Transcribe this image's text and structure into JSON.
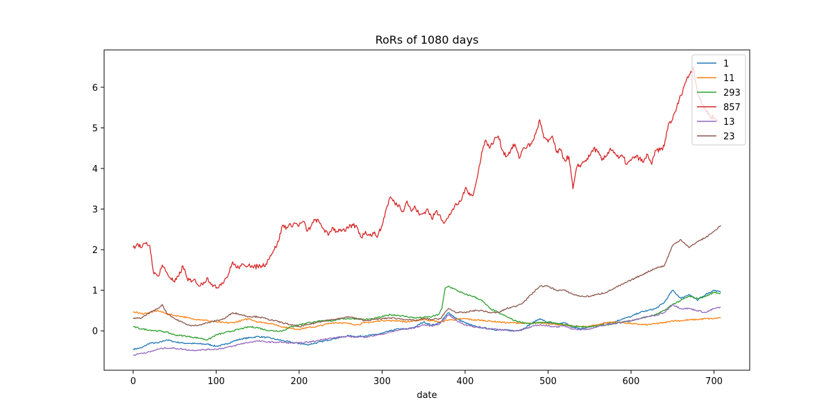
{
  "chart_data": {
    "type": "line",
    "title": "RoRs of 1080 days",
    "xlabel": "date",
    "ylabel": "",
    "xlim": [
      -35,
      743
    ],
    "ylim": [
      -0.97,
      6.92
    ],
    "xticks": [
      0,
      100,
      200,
      300,
      400,
      500,
      600,
      700
    ],
    "yticks": [
      0,
      1,
      2,
      3,
      4,
      5,
      6
    ],
    "grid": false,
    "legend_position": "top-right",
    "series": [
      {
        "name": "1",
        "color": "#1f77b4",
        "x": [
          0,
          10,
          20,
          30,
          40,
          50,
          60,
          70,
          80,
          90,
          100,
          110,
          120,
          130,
          140,
          150,
          160,
          170,
          180,
          190,
          200,
          210,
          220,
          230,
          240,
          250,
          260,
          270,
          280,
          290,
          300,
          310,
          320,
          330,
          340,
          350,
          360,
          370,
          380,
          390,
          400,
          410,
          420,
          430,
          440,
          450,
          460,
          470,
          480,
          490,
          500,
          510,
          520,
          530,
          540,
          550,
          560,
          570,
          580,
          590,
          600,
          610,
          620,
          630,
          640,
          650,
          660,
          670,
          680,
          690,
          700,
          708
        ],
        "values": [
          -0.45,
          -0.42,
          -0.3,
          -0.3,
          -0.22,
          -0.27,
          -0.3,
          -0.31,
          -0.32,
          -0.33,
          -0.38,
          -0.34,
          -0.26,
          -0.2,
          -0.17,
          -0.14,
          -0.16,
          -0.2,
          -0.24,
          -0.28,
          -0.31,
          -0.34,
          -0.3,
          -0.25,
          -0.2,
          -0.16,
          -0.12,
          -0.14,
          -0.12,
          -0.1,
          -0.06,
          0.0,
          0.05,
          0.04,
          0.1,
          0.22,
          0.14,
          0.2,
          0.45,
          0.3,
          0.2,
          0.12,
          0.08,
          0.05,
          0.02,
          0.02,
          0.0,
          0.05,
          0.18,
          0.3,
          0.2,
          0.16,
          0.2,
          0.08,
          0.05,
          0.1,
          0.15,
          0.2,
          0.22,
          0.3,
          0.35,
          0.45,
          0.5,
          0.55,
          0.7,
          1.0,
          0.8,
          0.9,
          0.75,
          0.9,
          1.0,
          0.95
        ]
      },
      {
        "name": "11",
        "color": "#ff7f0e",
        "x": [
          0,
          10,
          20,
          30,
          40,
          50,
          60,
          70,
          80,
          90,
          100,
          110,
          120,
          130,
          140,
          150,
          160,
          170,
          180,
          190,
          200,
          210,
          220,
          230,
          240,
          250,
          260,
          270,
          280,
          290,
          300,
          310,
          320,
          330,
          340,
          350,
          360,
          370,
          380,
          390,
          400,
          410,
          420,
          430,
          440,
          450,
          460,
          470,
          480,
          490,
          500,
          510,
          520,
          530,
          540,
          550,
          560,
          570,
          580,
          590,
          600,
          610,
          620,
          630,
          640,
          650,
          660,
          670,
          680,
          690,
          700,
          708
        ],
        "values": [
          0.48,
          0.42,
          0.45,
          0.5,
          0.42,
          0.38,
          0.35,
          0.3,
          0.28,
          0.25,
          0.22,
          0.2,
          0.2,
          0.25,
          0.3,
          0.22,
          0.2,
          0.16,
          0.1,
          0.06,
          0.04,
          0.08,
          0.1,
          0.15,
          0.2,
          0.2,
          0.18,
          0.15,
          0.2,
          0.22,
          0.26,
          0.25,
          0.25,
          0.22,
          0.25,
          0.28,
          0.25,
          0.22,
          0.27,
          0.28,
          0.3,
          0.27,
          0.26,
          0.24,
          0.22,
          0.2,
          0.2,
          0.19,
          0.18,
          0.2,
          0.18,
          0.16,
          0.14,
          0.12,
          0.1,
          0.12,
          0.15,
          0.2,
          0.22,
          0.2,
          0.18,
          0.16,
          0.15,
          0.18,
          0.2,
          0.25,
          0.25,
          0.27,
          0.28,
          0.3,
          0.3,
          0.33
        ]
      },
      {
        "name": "293",
        "color": "#2ca02c",
        "x": [
          0,
          10,
          20,
          30,
          40,
          50,
          60,
          70,
          80,
          90,
          100,
          110,
          120,
          130,
          140,
          150,
          160,
          170,
          180,
          190,
          200,
          210,
          220,
          230,
          240,
          250,
          260,
          270,
          280,
          290,
          300,
          310,
          320,
          330,
          340,
          350,
          360,
          368,
          372,
          376,
          380,
          390,
          400,
          410,
          420,
          430,
          440,
          450,
          460,
          470,
          480,
          490,
          500,
          510,
          520,
          530,
          540,
          550,
          560,
          570,
          580,
          590,
          600,
          610,
          620,
          630,
          640,
          650,
          660,
          670,
          680,
          690,
          700,
          708
        ],
        "values": [
          0.1,
          0.05,
          0.02,
          0.0,
          -0.03,
          -0.1,
          -0.12,
          -0.15,
          -0.18,
          -0.22,
          -0.1,
          -0.05,
          0.0,
          0.05,
          0.1,
          0.08,
          0.02,
          0.0,
          0.0,
          0.1,
          0.15,
          0.2,
          0.22,
          0.25,
          0.25,
          0.3,
          0.3,
          0.3,
          0.28,
          0.3,
          0.35,
          0.4,
          0.38,
          0.35,
          0.32,
          0.33,
          0.35,
          0.4,
          0.55,
          1.05,
          1.1,
          1.0,
          0.9,
          0.85,
          0.75,
          0.55,
          0.45,
          0.35,
          0.25,
          0.2,
          0.18,
          0.2,
          0.22,
          0.18,
          0.15,
          0.12,
          0.1,
          0.1,
          0.12,
          0.15,
          0.18,
          0.22,
          0.25,
          0.3,
          0.35,
          0.4,
          0.5,
          0.65,
          0.75,
          0.85,
          0.8,
          0.85,
          0.95,
          0.92
        ]
      },
      {
        "name": "857",
        "color": "#d62728",
        "x": [
          0,
          5,
          10,
          15,
          20,
          25,
          30,
          35,
          40,
          45,
          50,
          55,
          60,
          65,
          70,
          75,
          80,
          85,
          90,
          95,
          100,
          105,
          110,
          115,
          120,
          125,
          130,
          135,
          140,
          145,
          150,
          155,
          160,
          165,
          170,
          175,
          180,
          185,
          190,
          195,
          200,
          205,
          210,
          215,
          220,
          225,
          230,
          235,
          240,
          245,
          250,
          255,
          260,
          265,
          270,
          275,
          280,
          285,
          290,
          295,
          300,
          305,
          310,
          315,
          320,
          325,
          330,
          335,
          340,
          345,
          350,
          355,
          360,
          365,
          370,
          375,
          380,
          385,
          390,
          395,
          400,
          405,
          410,
          415,
          420,
          425,
          430,
          435,
          440,
          445,
          450,
          455,
          460,
          465,
          470,
          475,
          480,
          485,
          490,
          495,
          500,
          505,
          510,
          515,
          520,
          525,
          530,
          535,
          540,
          545,
          550,
          555,
          560,
          565,
          570,
          575,
          580,
          585,
          590,
          595,
          600,
          605,
          610,
          615,
          620,
          625,
          630,
          635,
          640,
          645,
          650,
          655,
          660,
          665,
          670,
          675,
          680,
          685,
          690,
          695,
          700,
          705
        ],
        "values": [
          2.05,
          2.15,
          2.05,
          2.15,
          2.1,
          1.4,
          1.35,
          1.62,
          1.45,
          1.3,
          1.2,
          1.35,
          1.6,
          1.3,
          1.2,
          1.25,
          1.1,
          1.2,
          1.3,
          1.15,
          1.05,
          1.15,
          1.25,
          1.4,
          1.7,
          1.55,
          1.6,
          1.6,
          1.65,
          1.55,
          1.6,
          1.6,
          1.65,
          1.85,
          2.0,
          2.2,
          2.6,
          2.55,
          2.6,
          2.65,
          2.6,
          2.7,
          2.45,
          2.6,
          2.75,
          2.65,
          2.5,
          2.35,
          2.55,
          2.45,
          2.5,
          2.45,
          2.55,
          2.6,
          2.55,
          2.3,
          2.45,
          2.35,
          2.4,
          2.35,
          2.6,
          3.0,
          3.3,
          3.15,
          3.1,
          2.95,
          3.2,
          2.95,
          3.05,
          2.85,
          2.9,
          3.0,
          2.75,
          2.95,
          2.85,
          2.65,
          2.8,
          3.0,
          3.1,
          3.2,
          3.5,
          3.4,
          3.35,
          3.8,
          4.4,
          4.7,
          4.5,
          4.7,
          4.8,
          4.45,
          4.3,
          4.45,
          4.6,
          4.25,
          4.5,
          4.55,
          4.6,
          4.85,
          5.2,
          4.75,
          4.65,
          4.8,
          4.4,
          4.45,
          4.2,
          4.3,
          3.5,
          4.05,
          4.1,
          4.2,
          4.3,
          4.5,
          4.4,
          4.2,
          4.3,
          4.5,
          4.4,
          4.25,
          4.3,
          4.1,
          4.2,
          4.3,
          4.25,
          4.15,
          4.35,
          4.1,
          4.45,
          4.45,
          4.55,
          5.1,
          5.2,
          5.5,
          5.8,
          6.1,
          6.3,
          6.5,
          5.9,
          5.6,
          5.45,
          5.3,
          5.25,
          5.15
        ]
      },
      {
        "name": "13",
        "color": "#9467bd",
        "x": [
          0,
          10,
          20,
          30,
          40,
          50,
          60,
          70,
          80,
          90,
          100,
          110,
          120,
          130,
          140,
          150,
          160,
          170,
          180,
          190,
          200,
          210,
          220,
          230,
          240,
          250,
          260,
          270,
          280,
          290,
          300,
          310,
          320,
          330,
          340,
          350,
          360,
          370,
          380,
          390,
          400,
          410,
          420,
          430,
          440,
          450,
          460,
          470,
          480,
          490,
          500,
          510,
          520,
          530,
          540,
          550,
          560,
          570,
          580,
          590,
          600,
          610,
          620,
          630,
          640,
          650,
          660,
          670,
          680,
          690,
          700,
          708
        ],
        "values": [
          -0.6,
          -0.55,
          -0.52,
          -0.45,
          -0.42,
          -0.43,
          -0.45,
          -0.48,
          -0.47,
          -0.46,
          -0.45,
          -0.42,
          -0.38,
          -0.32,
          -0.28,
          -0.25,
          -0.27,
          -0.28,
          -0.28,
          -0.3,
          -0.3,
          -0.28,
          -0.25,
          -0.2,
          -0.18,
          -0.15,
          -0.14,
          -0.15,
          -0.15,
          -0.12,
          -0.08,
          -0.03,
          0.02,
          0.05,
          0.08,
          0.15,
          0.12,
          0.18,
          0.4,
          0.25,
          0.15,
          0.1,
          0.08,
          0.05,
          0.03,
          0.02,
          0.0,
          0.03,
          0.1,
          0.15,
          0.12,
          0.1,
          0.12,
          0.05,
          0.03,
          0.05,
          0.1,
          0.15,
          0.18,
          0.22,
          0.25,
          0.3,
          0.35,
          0.38,
          0.45,
          0.65,
          0.55,
          0.55,
          0.5,
          0.45,
          0.55,
          0.58
        ]
      },
      {
        "name": "23",
        "color": "#8c564b",
        "x": [
          0,
          10,
          20,
          30,
          35,
          40,
          50,
          60,
          70,
          80,
          90,
          100,
          110,
          120,
          130,
          140,
          150,
          160,
          170,
          180,
          190,
          200,
          210,
          220,
          230,
          240,
          250,
          260,
          270,
          280,
          290,
          300,
          310,
          320,
          330,
          340,
          350,
          360,
          370,
          380,
          390,
          400,
          410,
          420,
          430,
          440,
          450,
          460,
          470,
          480,
          490,
          500,
          510,
          520,
          530,
          540,
          550,
          560,
          570,
          580,
          590,
          600,
          610,
          620,
          630,
          640,
          650,
          660,
          670,
          680,
          690,
          700,
          708
        ],
        "values": [
          0.3,
          0.32,
          0.45,
          0.55,
          0.65,
          0.45,
          0.3,
          0.2,
          0.12,
          0.15,
          0.2,
          0.25,
          0.3,
          0.45,
          0.4,
          0.35,
          0.35,
          0.3,
          0.25,
          0.2,
          0.15,
          0.1,
          0.15,
          0.2,
          0.25,
          0.28,
          0.3,
          0.35,
          0.3,
          0.25,
          0.28,
          0.3,
          0.32,
          0.3,
          0.28,
          0.25,
          0.3,
          0.28,
          0.3,
          0.55,
          0.45,
          0.45,
          0.5,
          0.5,
          0.45,
          0.45,
          0.55,
          0.6,
          0.7,
          0.9,
          1.1,
          1.1,
          1.0,
          1.0,
          0.9,
          0.85,
          0.85,
          0.9,
          0.95,
          1.05,
          1.15,
          1.25,
          1.35,
          1.45,
          1.55,
          1.6,
          2.1,
          2.25,
          2.05,
          2.2,
          2.3,
          2.45,
          2.6
        ]
      }
    ]
  }
}
